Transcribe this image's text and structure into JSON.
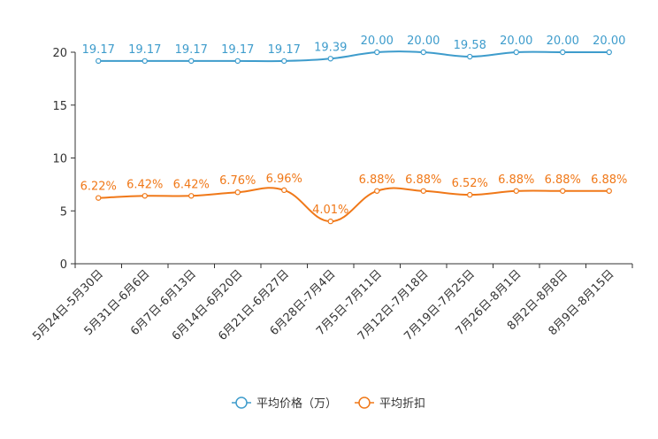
{
  "chart_data": {
    "type": "line",
    "title": "",
    "xlabel": "",
    "ylabel": "",
    "ylim": [
      0,
      20
    ],
    "yticks": [
      0,
      5,
      10,
      15,
      20
    ],
    "grid": false,
    "legend_position": "bottom-center",
    "categories": [
      "5月24日-5月30日",
      "5月31日-6月6日",
      "6月7日-6月13日",
      "6月14日-6月20日",
      "6月21日-6月27日",
      "6月28日-7月4日",
      "7月5日-7月11日",
      "7月12日-7月18日",
      "7月19日-7月25日",
      "7月26日-8月1日",
      "8月2日-8月8日",
      "8月9日-8月15日"
    ],
    "series": [
      {
        "name": "平均价格（万）",
        "color": "#3e9ccc",
        "values": [
          19.17,
          19.17,
          19.17,
          19.17,
          19.17,
          19.39,
          20.0,
          20.0,
          19.58,
          20.0,
          20.0,
          20.0
        ],
        "labels": [
          "19.17",
          "19.17",
          "19.17",
          "19.17",
          "19.17",
          "19.39",
          "20.00",
          "20.00",
          "19.58",
          "20.00",
          "20.00",
          "20.00"
        ]
      },
      {
        "name": "平均折扣",
        "color": "#f07818",
        "values": [
          6.22,
          6.42,
          6.42,
          6.76,
          6.96,
          4.01,
          6.88,
          6.88,
          6.52,
          6.88,
          6.88,
          6.88
        ],
        "labels": [
          "6.22%",
          "6.42%",
          "6.42%",
          "6.76%",
          "6.96%",
          "4.01%",
          "6.88%",
          "6.88%",
          "6.52%",
          "6.88%",
          "6.88%",
          "6.88%"
        ]
      }
    ]
  }
}
